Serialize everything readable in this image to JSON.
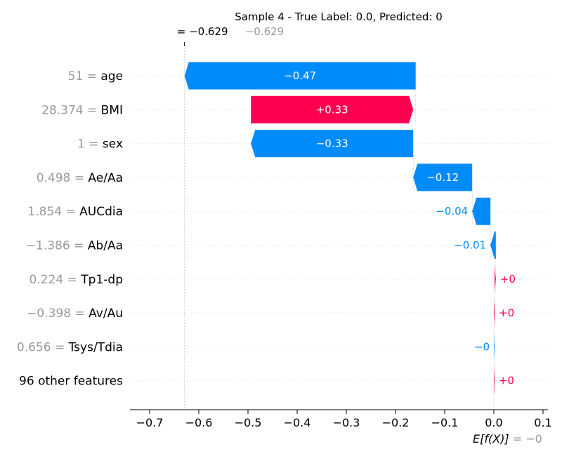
{
  "chart_data": {
    "type": "waterfall",
    "title": "Sample 4 - True Label: 0.0, Predicted: 0",
    "fx_label": {
      "prefix": "= ",
      "value_text": "−0.629",
      "ghost_text": "−0.629"
    },
    "base_label": {
      "expr": "E[f(X)]",
      "value_text": " = −0"
    },
    "base_value": 0,
    "final_value": -0.629,
    "xlim": [
      -0.74,
      0.11
    ],
    "xticks": [
      {
        "v": -0.7,
        "label": "−0.7"
      },
      {
        "v": -0.6,
        "label": "−0.6"
      },
      {
        "v": -0.5,
        "label": "−0.5"
      },
      {
        "v": -0.4,
        "label": "−0.4"
      },
      {
        "v": -0.3,
        "label": "−0.3"
      },
      {
        "v": -0.2,
        "label": "−0.2"
      },
      {
        "v": -0.1,
        "label": "−0.1"
      },
      {
        "v": 0.0,
        "label": "0.0"
      },
      {
        "v": 0.1,
        "label": "0.1"
      }
    ],
    "colors": {
      "positive": "#ff0051",
      "negative": "#008bfb",
      "value_gray": "#999999",
      "text": "#000000"
    },
    "features": [
      {
        "value": "51",
        "name": "age",
        "start": -0.159,
        "end": -0.629,
        "label": "−0.47"
      },
      {
        "value": "28.374",
        "name": "BMI",
        "start": -0.494,
        "end": -0.164,
        "label": "+0.33"
      },
      {
        "value": "1",
        "name": "sex",
        "start": -0.164,
        "end": -0.494,
        "label": "−0.33"
      },
      {
        "value": "0.498",
        "name": "Ae/Aa",
        "start": -0.044,
        "end": -0.164,
        "label": "−0.12"
      },
      {
        "value": "1.854",
        "name": "AUCdia",
        "start": -0.007,
        "end": -0.044,
        "label": "−0.04"
      },
      {
        "value": "−1.386",
        "name": "Ab/Aa",
        "start": 0.004,
        "end": -0.007,
        "label": "−0.01"
      },
      {
        "value": "0.224",
        "name": "Tp1-dp",
        "start": 0.0015,
        "end": 0.004,
        "label": "+0"
      },
      {
        "value": "−0.398",
        "name": "Av/Au",
        "start": 0.0,
        "end": 0.0015,
        "label": "+0"
      },
      {
        "value": "0.656",
        "name": "Tsys/Tdia",
        "start": 0.0012,
        "end": 0.0,
        "label": "−0"
      },
      {
        "value": "",
        "name": "96 other features",
        "start": 0.0,
        "end": 0.0012,
        "label": "+0"
      }
    ]
  }
}
